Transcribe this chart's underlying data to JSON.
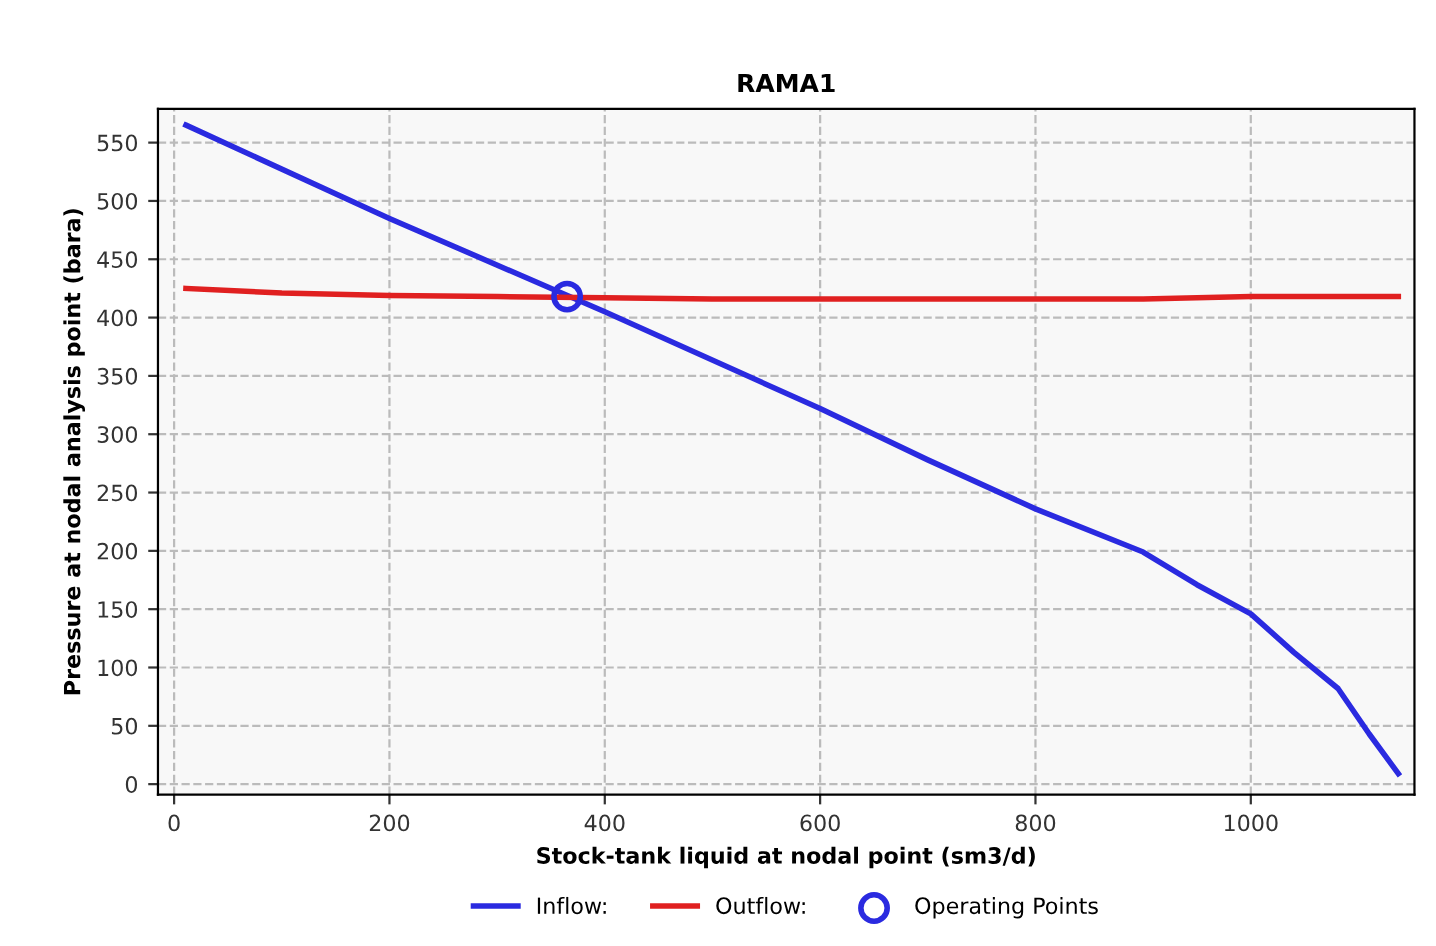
{
  "chart_data": {
    "type": "line",
    "title": "RAMA1",
    "xlabel": "Stock-tank liquid at nodal point (sm3/d)",
    "ylabel": "Pressure at nodal analysis point (bara)",
    "xlim": [
      -15,
      1152
    ],
    "ylim": [
      -9,
      579
    ],
    "xticks": [
      0,
      200,
      400,
      600,
      800,
      1000
    ],
    "yticks": [
      0,
      50,
      100,
      150,
      200,
      250,
      300,
      350,
      400,
      450,
      500,
      550
    ],
    "grid": true,
    "legend": "bottom",
    "series": [
      {
        "name": "Inflow:",
        "color": "#2a2ae0",
        "x": [
          11,
          200,
          400,
          600,
          700,
          800,
          900,
          950,
          1000,
          1040,
          1081,
          1110,
          1137
        ],
        "values": [
          565,
          485,
          405,
          322,
          278,
          236,
          199,
          171,
          146,
          113,
          82,
          43,
          9
        ]
      },
      {
        "name": "Outflow:",
        "color": "#e02020",
        "x": [
          11,
          100,
          200,
          300,
          400,
          500,
          700,
          900,
          1000,
          1137
        ],
        "values": [
          425,
          421,
          419,
          418,
          417,
          416,
          416,
          416,
          418,
          418
        ]
      },
      {
        "name": "Operating Points",
        "type": "scatter",
        "color": "#2a2ae0",
        "marker": "circle",
        "x": [
          365
        ],
        "values": [
          418
        ]
      }
    ]
  }
}
